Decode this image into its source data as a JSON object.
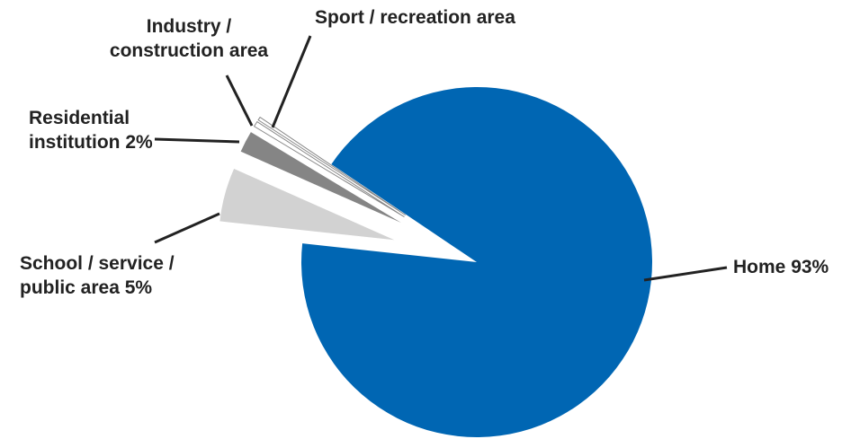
{
  "chart_data": {
    "type": "pie",
    "categories": [
      "Home",
      "School / service / public area",
      "Residential institution",
      "Industry / construction area",
      "Sport / recreation area"
    ],
    "values": [
      93,
      5,
      2,
      0.5,
      0.3
    ],
    "value_labels": [
      "93%",
      "5%",
      "2%",
      null,
      null
    ],
    "colors": [
      "#0066b3",
      "#d2d2d2",
      "#858585",
      "#ffffff",
      "#ffffff"
    ]
  }
}
